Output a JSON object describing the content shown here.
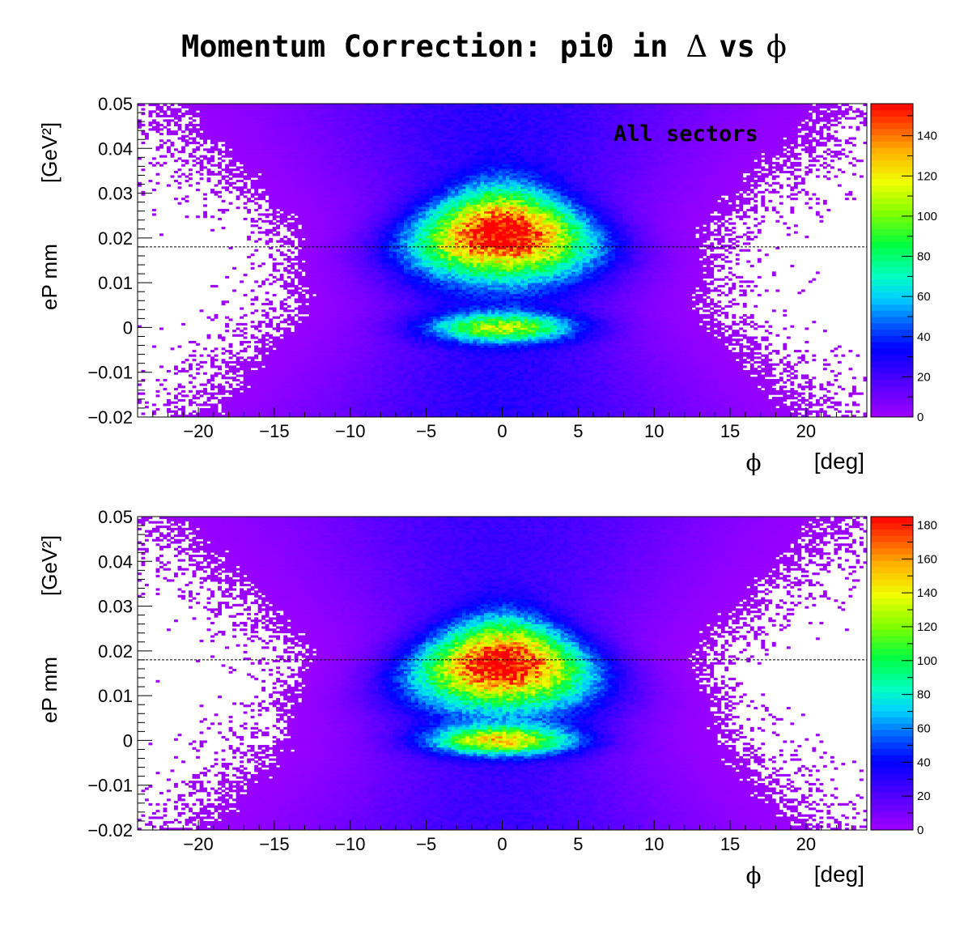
{
  "page": {
    "title_text": "Momentum Correction: pi0 in",
    "title_delta": "Δ",
    "title_vs": "vs",
    "title_phi": "ϕ"
  },
  "chart_data": [
    {
      "type": "heatmap",
      "annotation": "All sectors",
      "xlabel_symbol": "ϕ",
      "xlabel_unit": "[deg]",
      "ylabel_text": "eP mm",
      "ylabel_unit": "[GeV²]",
      "xlim": [
        -24,
        24
      ],
      "ylim": [
        -0.02,
        0.05
      ],
      "x_ticks": [
        -20,
        -15,
        -10,
        -5,
        0,
        5,
        10,
        15,
        20
      ],
      "x_tick_labels": [
        "−20",
        "−15",
        "−10",
        "−5",
        "0",
        "5",
        "10",
        "15",
        "20"
      ],
      "y_ticks": [
        -0.02,
        -0.01,
        0,
        0.01,
        0.02,
        0.03,
        0.04,
        0.05
      ],
      "y_tick_labels": [
        "−0.02",
        "−0.01",
        "0",
        "0.01",
        "0.02",
        "0.03",
        "0.04",
        "0.05"
      ],
      "reference_line_y": 0.018,
      "z_range": [
        0,
        156
      ],
      "z_ticks": [
        0,
        20,
        40,
        60,
        80,
        100,
        120,
        140
      ],
      "z_tick_labels": [
        "0",
        "20",
        "40",
        "60",
        "80",
        "100",
        "120",
        "140"
      ],
      "peaks": [
        {
          "x": 0,
          "y": 0.021,
          "z": 156
        },
        {
          "x": 0,
          "y": 0.0,
          "z": 90
        }
      ]
    },
    {
      "type": "heatmap",
      "xlabel_symbol": "ϕ",
      "xlabel_unit": "[deg]",
      "ylabel_text": "eP mm",
      "ylabel_unit": "[GeV²]",
      "xlim": [
        -24,
        24
      ],
      "ylim": [
        -0.02,
        0.05
      ],
      "x_ticks": [
        -20,
        -15,
        -10,
        -5,
        0,
        5,
        10,
        15,
        20
      ],
      "x_tick_labels": [
        "−20",
        "−15",
        "−10",
        "−5",
        "0",
        "5",
        "10",
        "15",
        "20"
      ],
      "y_ticks": [
        -0.02,
        -0.01,
        0,
        0.01,
        0.02,
        0.03,
        0.04,
        0.05
      ],
      "y_tick_labels": [
        "−0.02",
        "−0.01",
        "0",
        "0.01",
        "0.02",
        "0.03",
        "0.04",
        "0.05"
      ],
      "reference_line_y": 0.018,
      "z_range": [
        0,
        185
      ],
      "z_ticks": [
        0,
        20,
        40,
        60,
        80,
        100,
        120,
        140,
        160,
        180
      ],
      "z_tick_labels": [
        "0",
        "20",
        "40",
        "60",
        "80",
        "100",
        "120",
        "140",
        "160",
        "180"
      ],
      "peaks": [
        {
          "x": 0,
          "y": 0.017,
          "z": 185
        },
        {
          "x": 0,
          "y": 0.0,
          "z": 130
        }
      ]
    }
  ]
}
